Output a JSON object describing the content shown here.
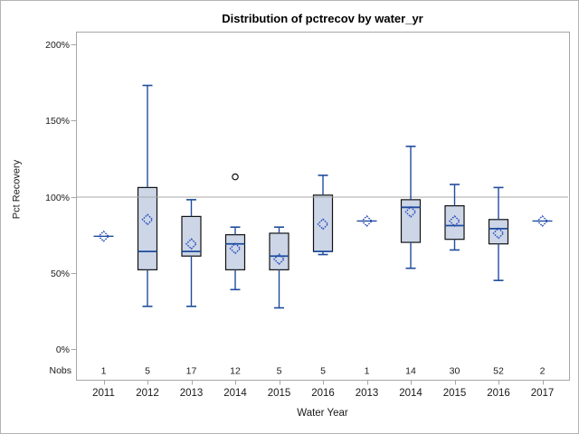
{
  "chart_data": {
    "type": "boxplot",
    "title": "Distribution of pctrecov by water_yr",
    "xlabel": "Water Year",
    "ylabel": "Pct Recovery",
    "nobs_label": "Nobs",
    "y_axis": {
      "ticks": [
        0,
        50,
        100,
        150,
        200
      ],
      "tick_labels": [
        "0%",
        "50%",
        "100%",
        "150%",
        "200%"
      ],
      "ylim": [
        0,
        200
      ]
    },
    "reference_line": 100,
    "grid": "off",
    "legend": "none",
    "colors": {
      "box_fill": "#ccd6e7",
      "box_border": "#111111",
      "whisker": "#1f4c9c",
      "median": "#1f4c9c",
      "mean_marker": "#2448bb",
      "reference_line": "#a9a9a9",
      "frame": "#a6a6a6",
      "outlier": "#111111",
      "text": "#1a1a1a"
    },
    "categories": [
      {
        "year": "2011",
        "nobs": "1",
        "single_value": 74
      },
      {
        "year": "2012",
        "nobs": "5",
        "whisker_low": 28,
        "q1": 52,
        "median": 64,
        "q3": 106,
        "whisker_high": 173,
        "mean": 85
      },
      {
        "year": "2013",
        "nobs": "17",
        "whisker_low": 28,
        "q1": 61,
        "median": 64,
        "q3": 87,
        "whisker_high": 98,
        "mean": 69
      },
      {
        "year": "2014",
        "nobs": "12",
        "whisker_low": 39,
        "q1": 52,
        "median": 69,
        "q3": 75,
        "whisker_high": 80,
        "mean": 66,
        "outliers": [
          113
        ]
      },
      {
        "year": "2015",
        "nobs": "5",
        "whisker_low": 27,
        "q1": 52,
        "median": 61,
        "q3": 76,
        "whisker_high": 80,
        "mean": 59
      },
      {
        "year": "2016",
        "nobs": "5",
        "whisker_low": 62,
        "q1": 64,
        "median": 64,
        "q3": 101,
        "whisker_high": 114,
        "mean": 82
      },
      {
        "year": "2013",
        "nobs": "1",
        "single_value": 84
      },
      {
        "year": "2014",
        "nobs": "14",
        "whisker_low": 53,
        "q1": 70,
        "median": 93,
        "q3": 98,
        "whisker_high": 133,
        "mean": 90
      },
      {
        "year": "2015",
        "nobs": "30",
        "whisker_low": 65,
        "q1": 72,
        "median": 81,
        "q3": 94,
        "whisker_high": 108,
        "mean": 84
      },
      {
        "year": "2016",
        "nobs": "52",
        "whisker_low": 45,
        "q1": 69,
        "median": 79,
        "q3": 85,
        "whisker_high": 106,
        "mean": 76
      },
      {
        "year": "2017",
        "nobs": "2",
        "single_value": 84
      }
    ]
  }
}
